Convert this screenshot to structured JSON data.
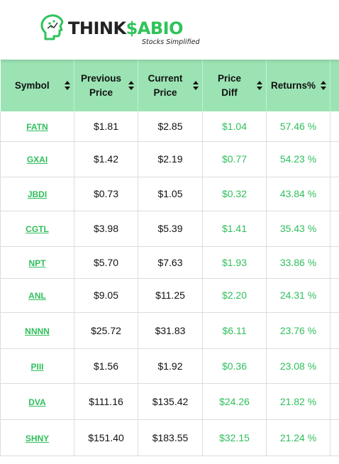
{
  "logo": {
    "think": "THINK",
    "sabio": "$ABIO",
    "tagline": "Stocks Simplified"
  },
  "colors": {
    "accent": "#2fbf5c",
    "header_bg": "#9be3b3"
  },
  "table": {
    "headers": {
      "symbol": "Symbol",
      "prev_1": "Previous",
      "prev_2": "Price",
      "curr_1": "Current",
      "curr_2": "Price",
      "diff_1": "Price",
      "diff_2": "Diff",
      "returns": "Returns%"
    },
    "rows": [
      {
        "symbol": "FATN",
        "prev": "$1.81",
        "curr": "$2.85",
        "diff": "$1.04",
        "ret": "57.46 %"
      },
      {
        "symbol": "GXAI",
        "prev": "$1.42",
        "curr": "$2.19",
        "diff": "$0.77",
        "ret": "54.23 %"
      },
      {
        "symbol": "JBDI",
        "prev": "$0.73",
        "curr": "$1.05",
        "diff": "$0.32",
        "ret": "43.84 %"
      },
      {
        "symbol": "CGTL",
        "prev": "$3.98",
        "curr": "$5.39",
        "diff": "$1.41",
        "ret": "35.43 %"
      },
      {
        "symbol": "NPT",
        "prev": "$5.70",
        "curr": "$7.63",
        "diff": "$1.93",
        "ret": "33.86 %"
      },
      {
        "symbol": "ANL",
        "prev": "$9.05",
        "curr": "$11.25",
        "diff": "$2.20",
        "ret": "24.31 %"
      },
      {
        "symbol": "NNNN",
        "prev": "$25.72",
        "curr": "$31.83",
        "diff": "$6.11",
        "ret": "23.76 %"
      },
      {
        "symbol": "PIII",
        "prev": "$1.56",
        "curr": "$1.92",
        "diff": "$0.36",
        "ret": "23.08 %"
      },
      {
        "symbol": "DVA",
        "prev": "$111.16",
        "curr": "$135.42",
        "diff": "$24.26",
        "ret": "21.82 %"
      },
      {
        "symbol": "SHNY",
        "prev": "$151.40",
        "curr": "$183.55",
        "diff": "$32.15",
        "ret": "21.24 %"
      }
    ]
  }
}
